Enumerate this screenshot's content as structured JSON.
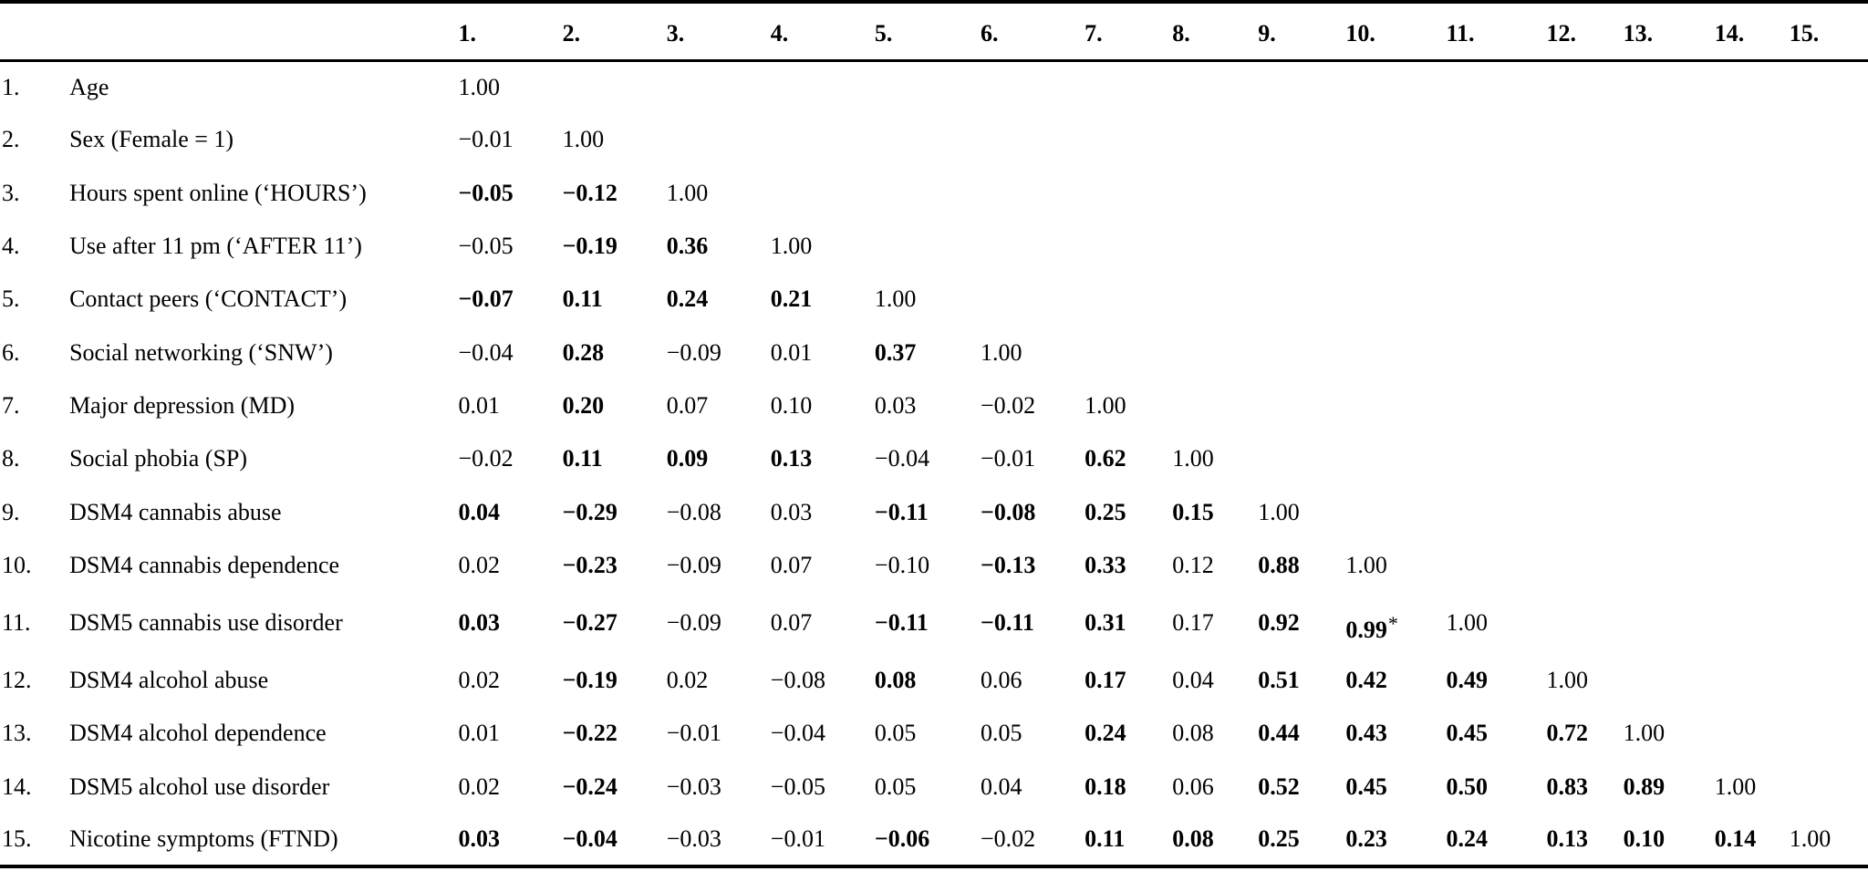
{
  "table": {
    "columns": [
      "1.",
      "2.",
      "3.",
      "4.",
      "5.",
      "6.",
      "7.",
      "8.",
      "9.",
      "10.",
      "11.",
      "12.",
      "13.",
      "14.",
      "15."
    ],
    "rows": [
      {
        "num": "1.",
        "label": "Age",
        "cells": [
          {
            "v": "1.00",
            "b": false
          }
        ]
      },
      {
        "num": "2.",
        "label": "Sex (Female = 1)",
        "cells": [
          {
            "v": "−0.01",
            "b": false
          },
          {
            "v": "1.00",
            "b": false
          }
        ]
      },
      {
        "num": "3.",
        "label": "Hours spent online (‘HOURS’)",
        "cells": [
          {
            "v": "−0.05",
            "b": true
          },
          {
            "v": "−0.12",
            "b": true
          },
          {
            "v": "1.00",
            "b": false
          }
        ]
      },
      {
        "num": "4.",
        "label": "Use after 11 pm (‘AFTER 11’)",
        "cells": [
          {
            "v": "−0.05",
            "b": false
          },
          {
            "v": "−0.19",
            "b": true
          },
          {
            "v": "0.36",
            "b": true
          },
          {
            "v": "1.00",
            "b": false
          }
        ]
      },
      {
        "num": "5.",
        "label": "Contact peers (‘CONTACT’)",
        "cells": [
          {
            "v": "−0.07",
            "b": true
          },
          {
            "v": "0.11",
            "b": true
          },
          {
            "v": "0.24",
            "b": true
          },
          {
            "v": "0.21",
            "b": true
          },
          {
            "v": "1.00",
            "b": false
          }
        ]
      },
      {
        "num": "6.",
        "label": "Social networking (‘SNW’)",
        "cells": [
          {
            "v": "−0.04",
            "b": false
          },
          {
            "v": "0.28",
            "b": true
          },
          {
            "v": "−0.09",
            "b": false
          },
          {
            "v": "0.01",
            "b": false
          },
          {
            "v": "0.37",
            "b": true
          },
          {
            "v": "1.00",
            "b": false
          }
        ]
      },
      {
        "num": "7.",
        "label": "Major depression (MD)",
        "cells": [
          {
            "v": "0.01",
            "b": false
          },
          {
            "v": "0.20",
            "b": true
          },
          {
            "v": "0.07",
            "b": false
          },
          {
            "v": "0.10",
            "b": false
          },
          {
            "v": "0.03",
            "b": false
          },
          {
            "v": "−0.02",
            "b": false
          },
          {
            "v": "1.00",
            "b": false
          }
        ]
      },
      {
        "num": "8.",
        "label": "Social phobia (SP)",
        "cells": [
          {
            "v": "−0.02",
            "b": false
          },
          {
            "v": "0.11",
            "b": true
          },
          {
            "v": "0.09",
            "b": true
          },
          {
            "v": "0.13",
            "b": true
          },
          {
            "v": "−0.04",
            "b": false
          },
          {
            "v": "−0.01",
            "b": false
          },
          {
            "v": "0.62",
            "b": true
          },
          {
            "v": "1.00",
            "b": false
          }
        ]
      },
      {
        "num": "9.",
        "label": "DSM4 cannabis abuse",
        "cells": [
          {
            "v": "0.04",
            "b": true
          },
          {
            "v": "−0.29",
            "b": true
          },
          {
            "v": "−0.08",
            "b": false
          },
          {
            "v": "0.03",
            "b": false
          },
          {
            "v": "−0.11",
            "b": true
          },
          {
            "v": "−0.08",
            "b": true
          },
          {
            "v": "0.25",
            "b": true
          },
          {
            "v": "0.15",
            "b": true
          },
          {
            "v": "1.00",
            "b": false
          }
        ]
      },
      {
        "num": "10.",
        "label": "DSM4 cannabis dependence",
        "cells": [
          {
            "v": "0.02",
            "b": false
          },
          {
            "v": "−0.23",
            "b": true
          },
          {
            "v": "−0.09",
            "b": false
          },
          {
            "v": "0.07",
            "b": false
          },
          {
            "v": "−0.10",
            "b": false
          },
          {
            "v": "−0.13",
            "b": true
          },
          {
            "v": "0.33",
            "b": true
          },
          {
            "v": "0.12",
            "b": false
          },
          {
            "v": "0.88",
            "b": true
          },
          {
            "v": "1.00",
            "b": false
          }
        ]
      },
      {
        "num": "11.",
        "label": "DSM5 cannabis use disorder",
        "cells": [
          {
            "v": "0.03",
            "b": true
          },
          {
            "v": "−0.27",
            "b": true
          },
          {
            "v": "−0.09",
            "b": false
          },
          {
            "v": "0.07",
            "b": false
          },
          {
            "v": "−0.11",
            "b": true
          },
          {
            "v": "−0.11",
            "b": true
          },
          {
            "v": "0.31",
            "b": true
          },
          {
            "v": "0.17",
            "b": false
          },
          {
            "v": "0.92",
            "b": true
          },
          {
            "v": "0.99",
            "b": true,
            "sup": "*"
          },
          {
            "v": "1.00",
            "b": false
          }
        ]
      },
      {
        "num": "12.",
        "label": "DSM4 alcohol abuse",
        "cells": [
          {
            "v": "0.02",
            "b": false
          },
          {
            "v": "−0.19",
            "b": true
          },
          {
            "v": "0.02",
            "b": false
          },
          {
            "v": "−0.08",
            "b": false
          },
          {
            "v": "0.08",
            "b": true
          },
          {
            "v": "0.06",
            "b": false
          },
          {
            "v": "0.17",
            "b": true
          },
          {
            "v": "0.04",
            "b": false
          },
          {
            "v": "0.51",
            "b": true
          },
          {
            "v": "0.42",
            "b": true
          },
          {
            "v": "0.49",
            "b": true
          },
          {
            "v": "1.00",
            "b": false
          }
        ]
      },
      {
        "num": "13.",
        "label": "DSM4 alcohol dependence",
        "cells": [
          {
            "v": "0.01",
            "b": false
          },
          {
            "v": "−0.22",
            "b": true
          },
          {
            "v": "−0.01",
            "b": false
          },
          {
            "v": "−0.04",
            "b": false
          },
          {
            "v": "0.05",
            "b": false
          },
          {
            "v": "0.05",
            "b": false
          },
          {
            "v": "0.24",
            "b": true
          },
          {
            "v": "0.08",
            "b": false
          },
          {
            "v": "0.44",
            "b": true
          },
          {
            "v": "0.43",
            "b": true
          },
          {
            "v": "0.45",
            "b": true
          },
          {
            "v": "0.72",
            "b": true
          },
          {
            "v": "1.00",
            "b": false
          }
        ]
      },
      {
        "num": "14.",
        "label": "DSM5 alcohol use disorder",
        "cells": [
          {
            "v": "0.02",
            "b": false
          },
          {
            "v": "−0.24",
            "b": true
          },
          {
            "v": "−0.03",
            "b": false
          },
          {
            "v": "−0.05",
            "b": false
          },
          {
            "v": "0.05",
            "b": false
          },
          {
            "v": "0.04",
            "b": false
          },
          {
            "v": "0.18",
            "b": true
          },
          {
            "v": "0.06",
            "b": false
          },
          {
            "v": "0.52",
            "b": true
          },
          {
            "v": "0.45",
            "b": true
          },
          {
            "v": "0.50",
            "b": true
          },
          {
            "v": "0.83",
            "b": true
          },
          {
            "v": "0.89",
            "b": true
          },
          {
            "v": "1.00",
            "b": false
          }
        ]
      },
      {
        "num": "15.",
        "label": "Nicotine symptoms (FTND)",
        "cells": [
          {
            "v": "0.03",
            "b": true
          },
          {
            "v": "−0.04",
            "b": true
          },
          {
            "v": "−0.03",
            "b": false
          },
          {
            "v": "−0.01",
            "b": false
          },
          {
            "v": "−0.06",
            "b": true
          },
          {
            "v": "−0.02",
            "b": false
          },
          {
            "v": "0.11",
            "b": true
          },
          {
            "v": "0.08",
            "b": true
          },
          {
            "v": "0.25",
            "b": true
          },
          {
            "v": "0.23",
            "b": true
          },
          {
            "v": "0.24",
            "b": true
          },
          {
            "v": "0.13",
            "b": true
          },
          {
            "v": "0.10",
            "b": true
          },
          {
            "v": "0.14",
            "b": true
          },
          {
            "v": "1.00",
            "b": false
          }
        ]
      }
    ]
  }
}
